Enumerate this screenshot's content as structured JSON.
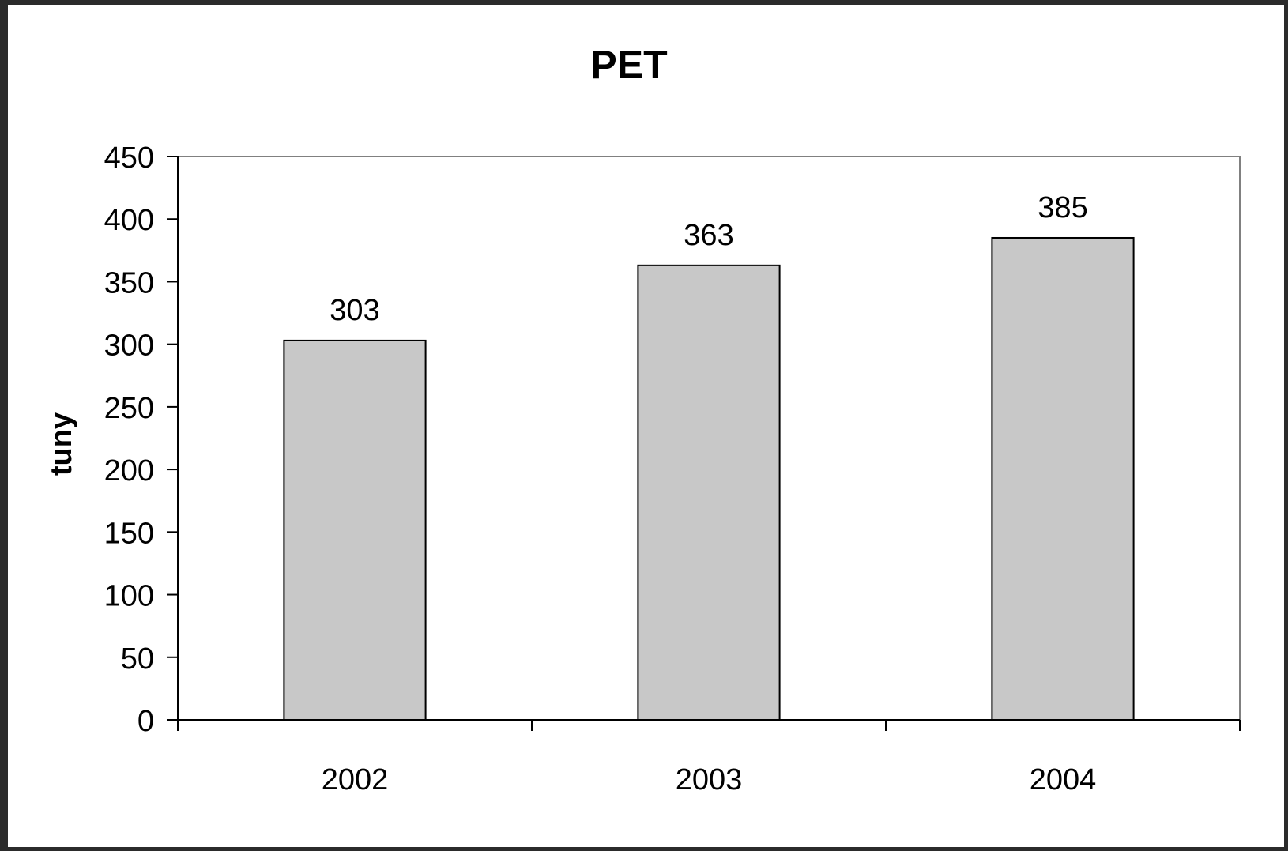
{
  "chart_data": {
    "type": "bar",
    "title": "PET",
    "xlabel": "",
    "ylabel": "tuny",
    "categories": [
      "2002",
      "2003",
      "2004"
    ],
    "values": [
      303,
      363,
      385
    ],
    "data_labels": [
      "303",
      "363",
      "385"
    ],
    "ylim": [
      0,
      450
    ],
    "yticks": [
      0,
      50,
      100,
      150,
      200,
      250,
      300,
      350,
      400,
      450
    ],
    "grid": false,
    "legend": "none",
    "bar_color": "#c8c8c8",
    "bar_edge_color": "#000000"
  }
}
